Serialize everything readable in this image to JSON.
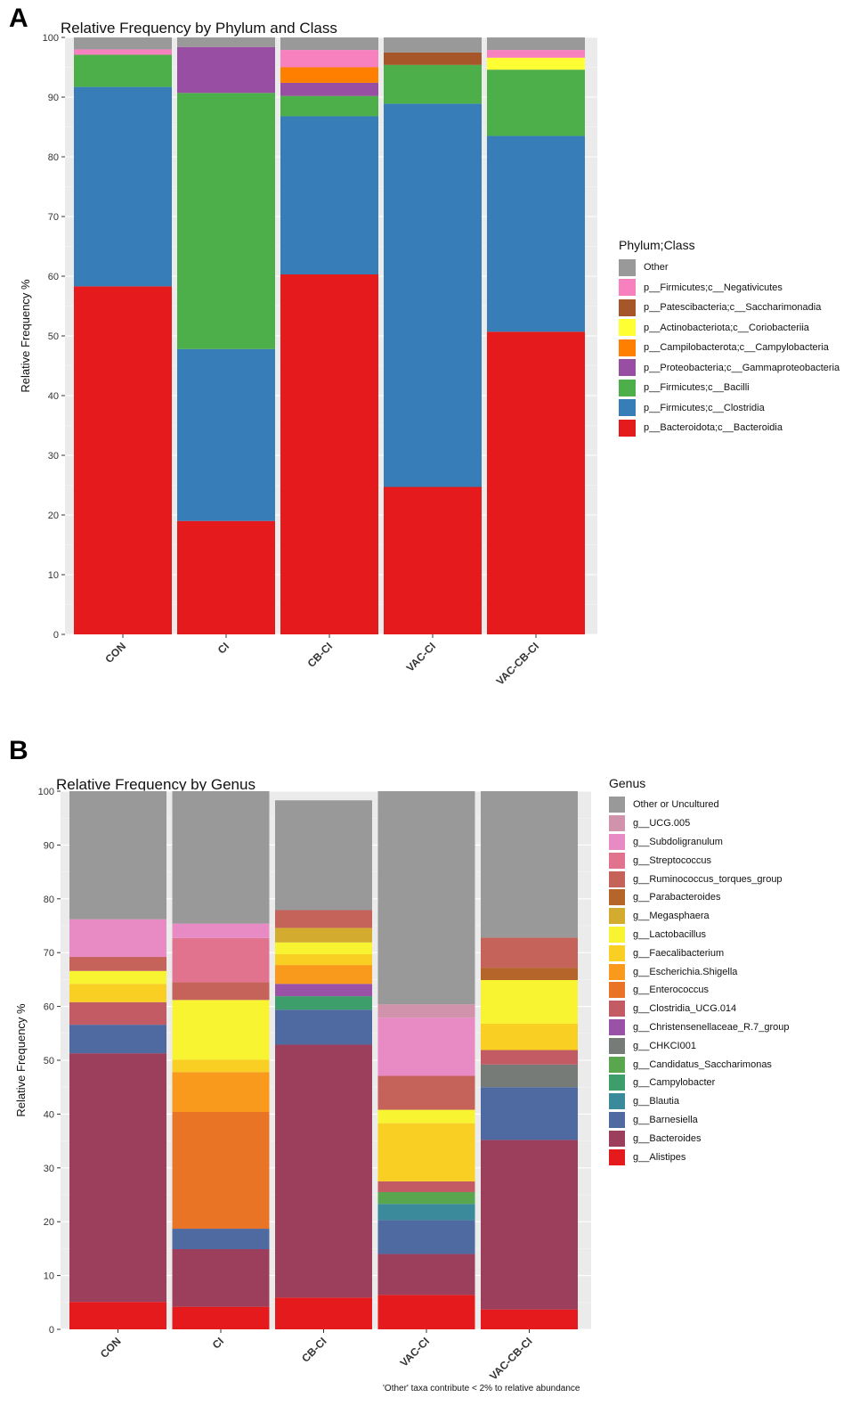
{
  "panels": [
    {
      "letter": "A",
      "title": "Relative Frequency by Phylum and Class",
      "legend_title": "Phylum;Class"
    },
    {
      "letter": "B",
      "title": "Relative Frequency by Genus",
      "legend_title": "Genus",
      "footnote": "'Other' taxa contribute < 2% to relative abundance"
    }
  ],
  "chart_data": [
    {
      "type": "bar",
      "stacked": true,
      "title": "Relative Frequency by Phylum and Class",
      "xlabel": "",
      "ylabel": "Relative Frequency %",
      "ylim": [
        0,
        100
      ],
      "yticks": [
        0,
        10,
        20,
        30,
        40,
        50,
        60,
        70,
        80,
        90,
        100
      ],
      "categories": [
        "CON",
        "CI",
        "CB-CI",
        "VAC-CI",
        "VAC-CB-CI"
      ],
      "legend_title": "Phylum;Class",
      "series": [
        {
          "name": "p__Bacteroidota;c__Bacteroidia",
          "color": "#e41a1c",
          "values": [
            58.3,
            19.0,
            60.3,
            24.7,
            50.7
          ]
        },
        {
          "name": "p__Firmicutes;c__Clostridia",
          "color": "#377eb8",
          "values": [
            33.4,
            28.8,
            26.5,
            64.2,
            32.8
          ]
        },
        {
          "name": "p__Firmicutes;c__Bacilli",
          "color": "#4daf4a",
          "values": [
            5.4,
            42.9,
            3.4,
            6.5,
            11.1
          ]
        },
        {
          "name": "p__Proteobacteria;c__Gammaproteobacteria",
          "color": "#984ea3",
          "values": [
            0.0,
            7.7,
            2.2,
            0.0,
            0.0
          ]
        },
        {
          "name": "p__Campilobacterota;c__Campylobacteria",
          "color": "#ff7f00",
          "values": [
            0.0,
            0.0,
            2.6,
            0.0,
            0.0
          ]
        },
        {
          "name": "p__Actinobacteriota;c__Coriobacteriia",
          "color": "#ffff33",
          "values": [
            0.0,
            0.0,
            0.0,
            0.0,
            2.0
          ]
        },
        {
          "name": "p__Patescibacteria;c__Saccharimonadia",
          "color": "#a65628",
          "values": [
            0.0,
            0.0,
            0.0,
            2.1,
            0.0
          ]
        },
        {
          "name": "p__Firmicutes;c__Negativicutes",
          "color": "#f781bf",
          "values": [
            0.9,
            0.0,
            2.9,
            0.0,
            1.3
          ]
        },
        {
          "name": "Other",
          "color": "#999999",
          "values": [
            2.0,
            1.6,
            2.1,
            2.5,
            2.1
          ]
        }
      ]
    },
    {
      "type": "bar",
      "stacked": true,
      "title": "Relative Frequency by Genus",
      "xlabel": "",
      "ylabel": "Relative Frequency %",
      "ylim": [
        0,
        100
      ],
      "yticks": [
        0,
        10,
        20,
        30,
        40,
        50,
        60,
        70,
        80,
        90,
        100
      ],
      "categories": [
        "CON",
        "CI",
        "CB-CI",
        "VAC-CI",
        "VAC-CB-CI"
      ],
      "legend_title": "Genus",
      "series": [
        {
          "name": "g__Alistipes",
          "color": "#e41a1c",
          "values": [
            5.1,
            4.2,
            5.9,
            6.4,
            3.7
          ]
        },
        {
          "name": "g__Bacteroides",
          "color": "#9c3f5c",
          "values": [
            46.2,
            10.7,
            47.0,
            7.6,
            31.5
          ]
        },
        {
          "name": "g__Barnesiella",
          "color": "#4f6aa0",
          "values": [
            5.3,
            3.8,
            6.5,
            6.3,
            9.8
          ]
        },
        {
          "name": "g__Blautia",
          "color": "#3a8a9c",
          "values": [
            0.0,
            0.0,
            0.0,
            3.0,
            0.0
          ]
        },
        {
          "name": "g__Campylobacter",
          "color": "#3d9e6c",
          "values": [
            0.0,
            0.0,
            2.5,
            0.0,
            0.0
          ]
        },
        {
          "name": "g__Candidatus_Saccharimonas",
          "color": "#5aa64f",
          "values": [
            0.0,
            0.0,
            0.0,
            2.2,
            0.0
          ]
        },
        {
          "name": "g__CHKCI001",
          "color": "#777b78",
          "values": [
            0.0,
            0.0,
            0.0,
            0.0,
            4.2
          ]
        },
        {
          "name": "g__Christensenellaceae_R.7_group",
          "color": "#9a52a6",
          "values": [
            0.0,
            0.0,
            2.3,
            0.0,
            0.0
          ]
        },
        {
          "name": "g__Clostridia_UCG.014",
          "color": "#c25b63",
          "values": [
            4.2,
            0.0,
            0.0,
            2.0,
            2.7
          ]
        },
        {
          "name": "g__Enterococcus",
          "color": "#ea7425",
          "values": [
            0.0,
            21.7,
            0.0,
            0.0,
            0.0
          ]
        },
        {
          "name": "g__Escherichia.Shigella",
          "color": "#f99a1c",
          "values": [
            0.0,
            7.4,
            3.5,
            0.0,
            0.0
          ]
        },
        {
          "name": "g__Faecalibacterium",
          "color": "#f9cf24",
          "values": [
            3.4,
            2.3,
            2.0,
            10.8,
            4.9
          ]
        },
        {
          "name": "g__Lactobacillus",
          "color": "#f9f431",
          "values": [
            2.4,
            11.1,
            2.2,
            2.5,
            8.1
          ]
        },
        {
          "name": "g__Megasphaera",
          "color": "#d2ab2f",
          "values": [
            0.0,
            0.0,
            2.7,
            0.0,
            0.0
          ]
        },
        {
          "name": "g__Parabacteroides",
          "color": "#b6652a",
          "values": [
            0.0,
            0.0,
            0.0,
            0.0,
            2.3
          ]
        },
        {
          "name": "g__Ruminococcus_torques_group",
          "color": "#c5625a",
          "values": [
            2.6,
            3.3,
            3.3,
            6.3,
            5.6
          ]
        },
        {
          "name": "g__Streptococcus",
          "color": "#e2738f",
          "values": [
            0.0,
            8.2,
            0.0,
            0.0,
            0.0
          ]
        },
        {
          "name": "g__Subdoligranulum",
          "color": "#e88ac3",
          "values": [
            7.0,
            2.7,
            0.0,
            10.8,
            0.0
          ]
        },
        {
          "name": "g__UCG.005",
          "color": "#d192ac",
          "values": [
            0.0,
            0.0,
            0.0,
            2.5,
            0.0
          ]
        },
        {
          "name": "Other or Uncultured",
          "color": "#999999",
          "values": [
            23.8,
            24.6,
            20.4,
            39.6,
            27.2
          ]
        }
      ]
    }
  ]
}
